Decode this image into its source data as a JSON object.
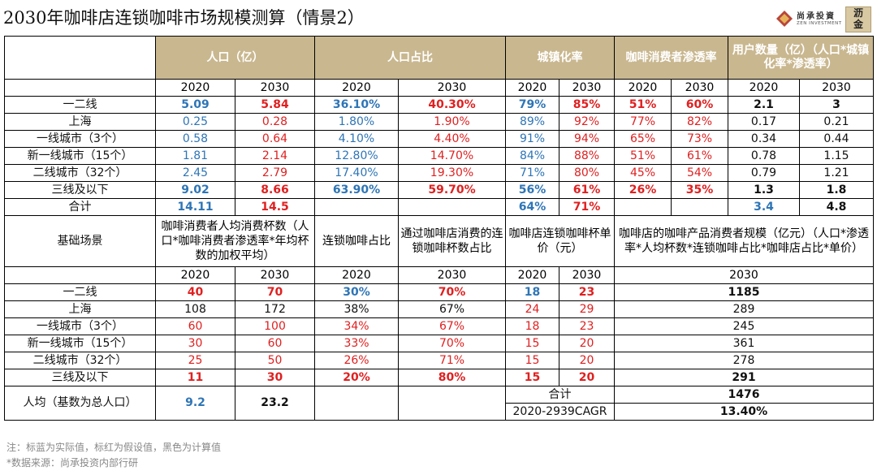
{
  "title": "2030年咖啡店连锁咖啡市场规模测算（情景2）",
  "logo": {
    "cn": "尚承投資",
    "en": "ZEN INVESTMENT",
    "seal_top": "沥",
    "seal_bottom": "金"
  },
  "t1": {
    "headers": [
      "人口（亿）",
      "人口占比",
      "城镇化率",
      "咖啡消费者渗透率",
      "用户数量（亿）（人口*城镇化率*渗透率）"
    ],
    "years": [
      "2020",
      "2030"
    ],
    "rows": [
      {
        "label": "一二线",
        "v": [
          "5.09",
          "5.84",
          "36.10%",
          "40.30%",
          "79%",
          "85%",
          "51%",
          "60%",
          "2.1",
          "3"
        ]
      },
      {
        "label": "上海",
        "v": [
          "0.25",
          "0.28",
          "1.80%",
          "1.90%",
          "89%",
          "92%",
          "77%",
          "82%",
          "0.17",
          "0.21"
        ]
      },
      {
        "label": "一线城市（3个）",
        "v": [
          "0.58",
          "0.64",
          "4.10%",
          "4.40%",
          "91%",
          "94%",
          "65%",
          "73%",
          "0.34",
          "0.44"
        ]
      },
      {
        "label": "新一线城市（15个）",
        "v": [
          "1.81",
          "2.14",
          "12.80%",
          "14.70%",
          "84%",
          "88%",
          "51%",
          "61%",
          "0.78",
          "1.15"
        ]
      },
      {
        "label": "二线城市（32个）",
        "v": [
          "2.45",
          "2.79",
          "17.40%",
          "19.30%",
          "71%",
          "80%",
          "45%",
          "54%",
          "0.79",
          "1.21"
        ]
      },
      {
        "label": "三线及以下",
        "v": [
          "9.02",
          "8.66",
          "63.90%",
          "59.70%",
          "56%",
          "61%",
          "26%",
          "35%",
          "1.3",
          "1.8"
        ]
      },
      {
        "label": "合计",
        "v": [
          "14.11",
          "14.5",
          "",
          "",
          "64%",
          "71%",
          "",
          "",
          "3.4",
          "4.8"
        ]
      }
    ]
  },
  "t2": {
    "scenario": "基础场景",
    "headers": [
      "咖啡消费者人均消费杯数（人口*咖啡消费者渗透率*年均杯数的加权平均）",
      "连锁咖啡占比",
      "通过咖啡店消费的连锁咖啡杯数占比",
      "咖啡店连锁咖啡杯单价（元）",
      "咖啡店的咖啡产品消费者规模（亿元）（人口*渗透率*人均杯数*连锁咖啡占比*咖啡店占比*单价）"
    ],
    "years": [
      "2020",
      "2030",
      "2020",
      "2030",
      "2020",
      "2030",
      "2030"
    ],
    "rows": [
      {
        "label": "一二线",
        "v": [
          "40",
          "70",
          "30%",
          "70%",
          "18",
          "23",
          "1185"
        ]
      },
      {
        "label": "上海",
        "v": [
          "108",
          "172",
          "38%",
          "67%",
          "24",
          "29",
          "289"
        ]
      },
      {
        "label": "一线城市（3个）",
        "v": [
          "60",
          "100",
          "34%",
          "67%",
          "18",
          "23",
          "245"
        ]
      },
      {
        "label": "新一线城市（15个）",
        "v": [
          "30",
          "60",
          "33%",
          "70%",
          "15",
          "20",
          "361"
        ]
      },
      {
        "label": "二线城市（32个）",
        "v": [
          "25",
          "50",
          "26%",
          "71%",
          "15",
          "20",
          "278"
        ]
      },
      {
        "label": "三线及以下",
        "v": [
          "11",
          "30",
          "20%",
          "80%",
          "15",
          "20",
          "291"
        ]
      }
    ],
    "avg": {
      "label": "人均（基数为总人口）",
      "v2020": "9.2",
      "v2030": "23.2"
    },
    "total": {
      "label": "合计",
      "value": "1476"
    },
    "cagr": {
      "label": "2020-2939CAGR",
      "value": "13.40%"
    }
  },
  "notes": [
    "注：标蓝为实际值，标红为假设值，黑色为计算值",
    "*数据来源：尚承投资内部行研"
  ],
  "colors": {
    "actual": "#2e75b6",
    "assumed": "#e02020",
    "calc": "#111111",
    "header_bg": "#c9b78f"
  }
}
